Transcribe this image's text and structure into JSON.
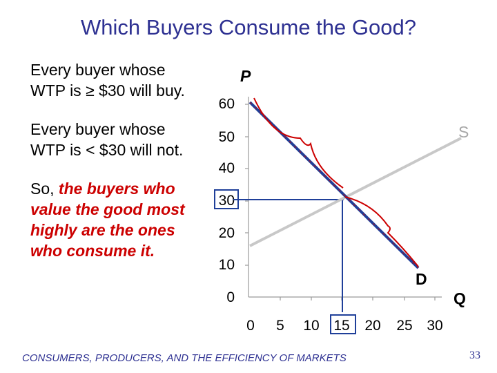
{
  "slide": {
    "title": "Which Buyers Consume the Good?",
    "bullet1": "Every buyer whose WTP is ≥ $30 will buy.",
    "bullet2": "Every buyer whose WTP is < $30 will not.",
    "bullet3_prefix": "So, ",
    "bullet3_emphasis": "the buyers who value the good most highly are the ones who consume it.",
    "footer": "CONSUMERS, PRODUCERS, AND THE EFFICIENCY OF MARKETS",
    "page_number": "33"
  },
  "chart_data": {
    "type": "line",
    "y_axis_letter": "P",
    "x_axis_letter": "Q",
    "y_ticks": [
      "60",
      "50",
      "40",
      "30",
      "20",
      "10",
      "0"
    ],
    "x_ticks": [
      "0",
      "5",
      "10",
      "15",
      "20",
      "25",
      "30"
    ],
    "xlim": [
      0,
      30
    ],
    "ylim": [
      0,
      60
    ],
    "series": [
      {
        "name": "D",
        "color": "#1f3f99",
        "points": [
          [
            0,
            60
          ],
          [
            25,
            10
          ]
        ]
      },
      {
        "name": "S",
        "color": "#c8c8c8",
        "points": [
          [
            0,
            15
          ],
          [
            30,
            50
          ]
        ]
      }
    ],
    "highlighted": {
      "price": "30",
      "quantity": "15"
    },
    "colors": {
      "guide": "#1f3f99",
      "accent": "#cc0000",
      "text": "#2e3192"
    }
  }
}
